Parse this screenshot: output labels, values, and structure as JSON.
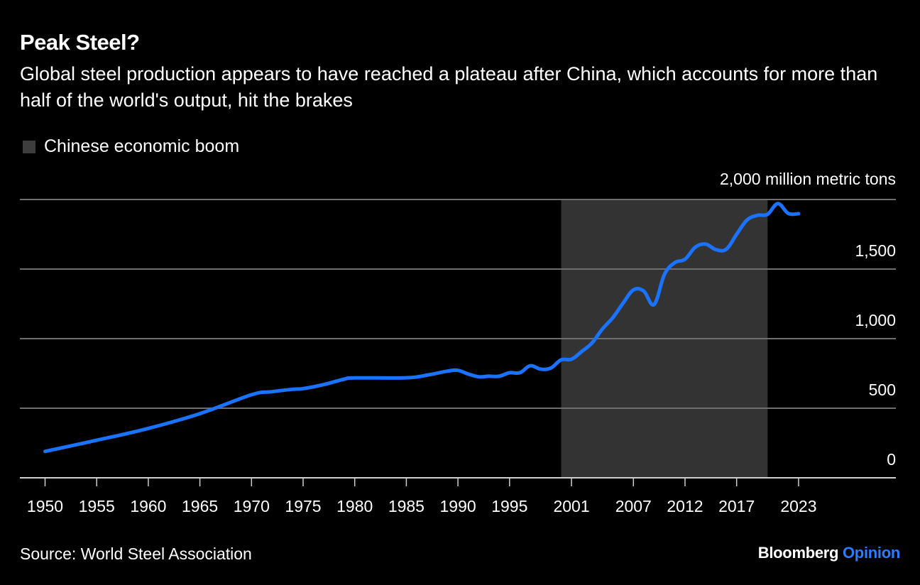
{
  "header": {
    "title": "Peak Steel?",
    "subtitle": "Global steel production appears to have reached a plateau after China, which accounts for more than half of the world's output, hit the brakes"
  },
  "legend": {
    "items": [
      {
        "label": "Chinese economic boom",
        "color": "#3d3d3d"
      }
    ]
  },
  "footer": {
    "source": "Source: World Steel Association",
    "brand": "Bloomberg",
    "brand_suffix": "Opinion"
  },
  "colors": {
    "line": "#1a73ff",
    "shade": "#333333",
    "grid": "#6e6e6e",
    "axis": "#cfcfcf",
    "background": "#000000"
  },
  "chart_data": {
    "type": "line",
    "title": "Peak Steel?",
    "xlabel": "",
    "ylabel": "million metric tons",
    "y_unit_label": "2,000 million metric tons",
    "ylim": [
      0,
      2000
    ],
    "xlim": [
      1950,
      2023
    ],
    "y_ticks": [
      0,
      500,
      1000,
      1500,
      2000
    ],
    "y_tick_labels": [
      "0",
      "500",
      "1,000",
      "1,500",
      "2,000 million metric tons"
    ],
    "x_ticks": [
      1950,
      1955,
      1960,
      1965,
      1970,
      1975,
      1980,
      1985,
      1990,
      1995,
      2001,
      2007,
      2012,
      2017,
      2023
    ],
    "x_tick_labels": [
      "1950",
      "1955",
      "1960",
      "1965",
      "1970",
      "1975",
      "1980",
      "1985",
      "1990",
      "1995",
      "2001",
      "2007",
      "2012",
      "2017",
      "2023"
    ],
    "grid": true,
    "y_axis_side": "right",
    "shaded_regions": [
      {
        "label": "Chinese economic boom",
        "start": 2000,
        "end": 2020
      }
    ],
    "series": [
      {
        "name": "Global steel production",
        "x": [
          1950,
          1955,
          1960,
          1965,
          1970,
          1972,
          1974,
          1975,
          1977,
          1979,
          1980,
          1985,
          1987,
          1989,
          1990,
          1991,
          1992,
          1993,
          1994,
          1995,
          1996,
          1997,
          1998,
          1999,
          2000,
          2001,
          2002,
          2003,
          2004,
          2005,
          2006,
          2007,
          2008,
          2009,
          2010,
          2011,
          2012,
          2013,
          2014,
          2015,
          2016,
          2017,
          2018,
          2019,
          2020,
          2021,
          2022,
          2023
        ],
        "values": [
          190,
          270,
          355,
          461,
          597,
          619,
          636,
          641,
          670,
          709,
          718,
          719,
          738,
          767,
          772,
          746,
          726,
          730,
          730,
          755,
          755,
          805,
          781,
          789,
          848,
          852,
          908,
          970,
          1070,
          1150,
          1255,
          1350,
          1342,
          1245,
          1460,
          1546,
          1571,
          1657,
          1679,
          1640,
          1643,
          1750,
          1852,
          1886,
          1894,
          1971,
          1900,
          1898
        ]
      }
    ]
  }
}
